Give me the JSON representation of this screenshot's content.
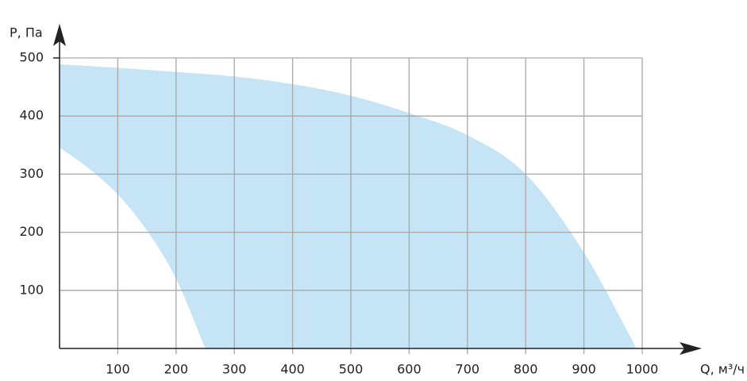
{
  "chart_data": {
    "type": "area",
    "x_label": "Q, м³/ч",
    "y_label": "P, Па",
    "series": [
      {
        "color": "#c5e4f5",
        "x": [
          0,
          100,
          200,
          300,
          400,
          500,
          600,
          700,
          800,
          900,
          990
        ],
        "values": [
          489,
          483,
          476,
          468,
          455,
          435,
          405,
          367,
          300,
          165,
          0
        ]
      },
      {
        "color": "#c5e4f5",
        "x": [
          250,
          200,
          150,
          100,
          50,
          0
        ],
        "values": [
          0,
          120,
          203,
          265,
          310,
          346
        ]
      }
    ],
    "xlim": [
      0,
      1000
    ],
    "ylim": [
      0,
      500
    ],
    "xticks": [
      100,
      200,
      300,
      400,
      500,
      600,
      700,
      800,
      900,
      1000
    ],
    "yticks": [
      100,
      200,
      300,
      400,
      500
    ],
    "grid": true
  }
}
